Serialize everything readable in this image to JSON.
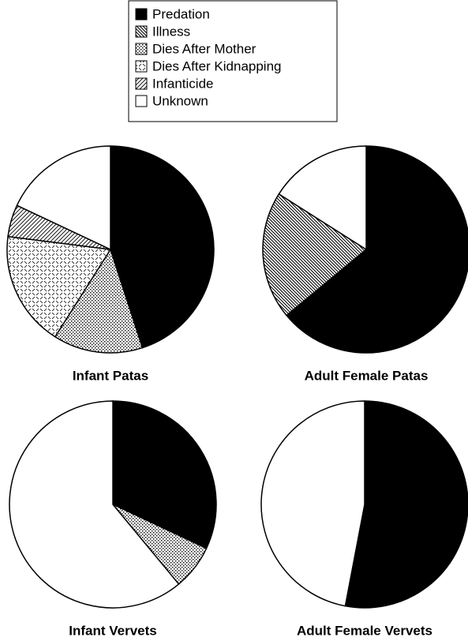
{
  "chart_data": {
    "type": "pie",
    "categories": [
      "Predation",
      "Illness",
      "Dies After Mother",
      "Dies After Kidnapping",
      "Infanticide",
      "Unknown"
    ],
    "series": [
      {
        "name": "Infant Patas",
        "values": [
          45,
          0,
          14,
          18,
          5,
          18
        ]
      },
      {
        "name": "Adult Female Patas",
        "values": [
          64,
          20,
          0,
          0,
          0,
          16
        ]
      },
      {
        "name": "Infant Vervets",
        "values": [
          32,
          0,
          7,
          0,
          0,
          61
        ]
      },
      {
        "name": "Adult Female Vervets",
        "values": [
          53,
          0,
          0,
          0,
          0,
          47
        ]
      }
    ]
  }
}
